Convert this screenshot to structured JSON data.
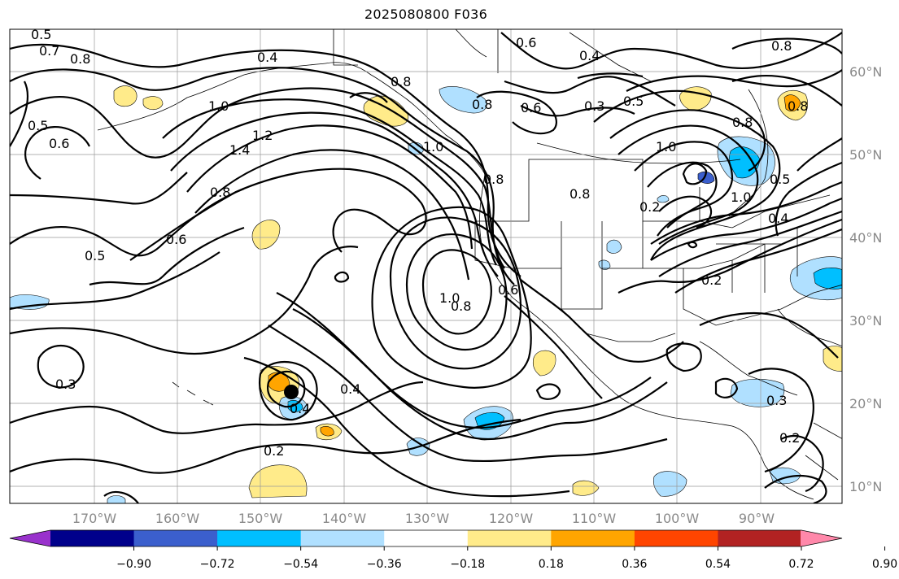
{
  "title": "2025080800 F036",
  "longitude_labels": [
    "170°W",
    "160°W",
    "150°W",
    "140°W",
    "130°W",
    "120°W",
    "110°W",
    "100°W",
    "90°W"
  ],
  "latitude_labels": [
    "60°N",
    "50°N",
    "40°N",
    "30°N",
    "20°N",
    "10°N"
  ],
  "colorbar": {
    "ticks": [
      "−0.90",
      "−0.72",
      "−0.54",
      "−0.36",
      "−0.18",
      "0.18",
      "0.36",
      "0.54",
      "0.72",
      "0.90"
    ],
    "colors": [
      "#9932cc",
      "#00008b",
      "#3b5fcd",
      "#00bfff",
      "#b0e0ff",
      "#ffffff",
      "#ffeb8a",
      "#ffa500",
      "#ff4500",
      "#b22222",
      "#ff88aa"
    ],
    "extend": "both"
  },
  "contour_labels": [
    "0.5",
    "0.7",
    "0.8",
    "0.4",
    "0.6",
    "0.4",
    "0.8",
    "1.0",
    "1.2",
    "1.4",
    "0.5",
    "0.6",
    "0.8",
    "0.6",
    "0.5",
    "1.0",
    "0.8",
    "0.8",
    "0.2",
    "0.4",
    "0.6",
    "0.3",
    "0.2",
    "0.4",
    "0.5",
    "1.0",
    "0.8",
    "1.0",
    "0.8",
    "0.6",
    "0.3",
    "0.4",
    "0.2",
    "0.3",
    "0.2",
    "1.0",
    "0.8",
    "0.8",
    "0.5",
    "0.8"
  ],
  "marker": {
    "label": "storm-center",
    "lon": -147,
    "lat": 21.5
  }
}
